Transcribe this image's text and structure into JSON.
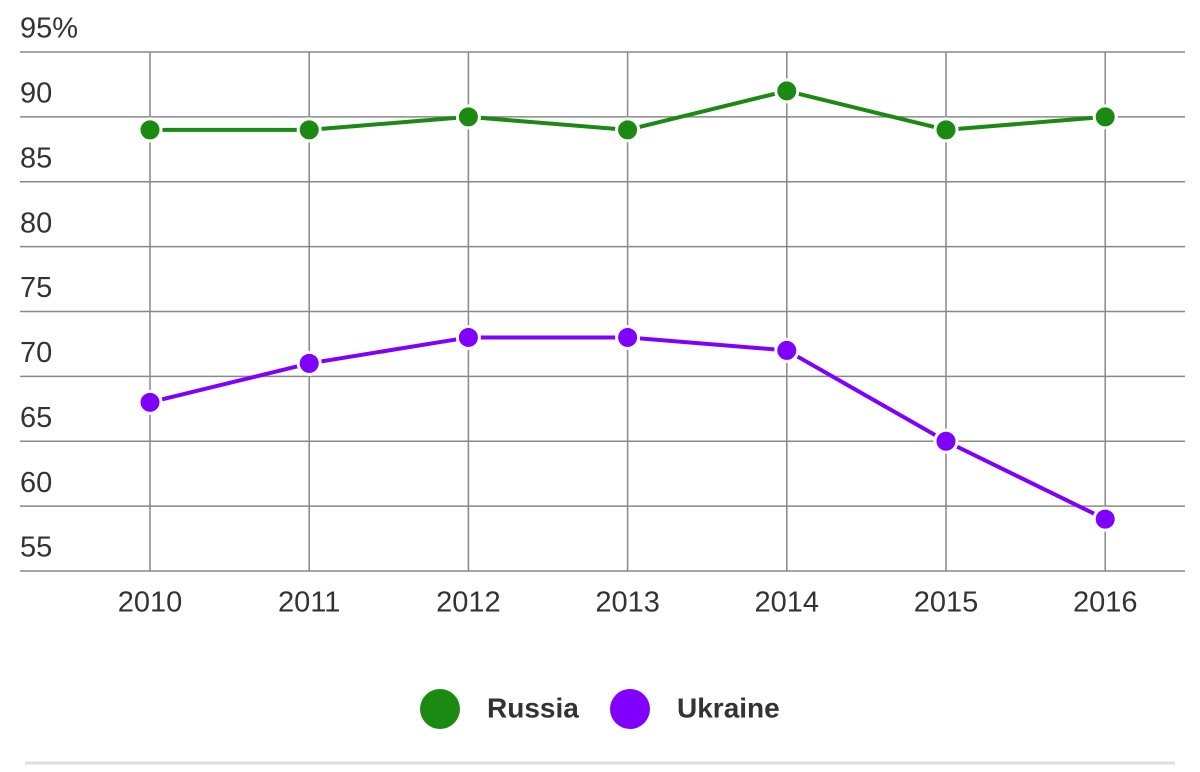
{
  "chart_data": {
    "type": "line",
    "categories": [
      "2010",
      "2011",
      "2012",
      "2013",
      "2014",
      "2015",
      "2016"
    ],
    "series": [
      {
        "name": "Russia",
        "color": "#1a8a12",
        "values": [
          89,
          89,
          90,
          89,
          92,
          89,
          90
        ]
      },
      {
        "name": "Ukraine",
        "color": "#7f00ff",
        "values": [
          68,
          71,
          73,
          73,
          72,
          65,
          59
        ]
      }
    ],
    "ylim": [
      55,
      95
    ],
    "yticks": [
      55,
      60,
      65,
      70,
      75,
      80,
      85,
      90,
      {
        "value": 95,
        "label": "95%"
      }
    ],
    "grid": true
  }
}
